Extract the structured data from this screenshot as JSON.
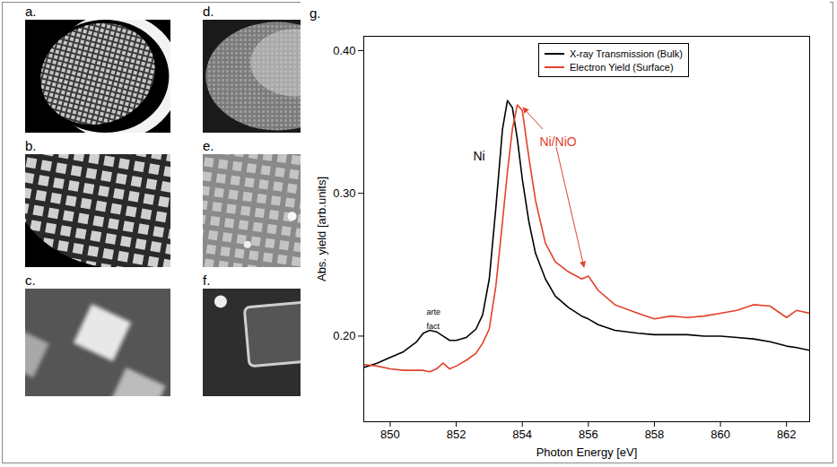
{
  "figure": {
    "panels": [
      "a.",
      "b.",
      "c.",
      "d.",
      "e.",
      "f."
    ],
    "chart_panel": "g."
  },
  "chart_data": {
    "type": "line",
    "x_label": "Photon Energy [eV]",
    "y_label": "Abs. yield [arb.units]",
    "x": [
      849.2,
      849.6,
      850,
      850.4,
      850.8,
      851.0,
      851.2,
      851.4,
      851.6,
      851.8,
      852.0,
      852.3,
      852.6,
      852.8,
      853.0,
      853.2,
      853.4,
      853.55,
      853.7,
      853.85,
      854.0,
      854.2,
      854.4,
      854.7,
      855.0,
      855.4,
      855.8,
      856.0,
      856.3,
      856.8,
      857.5,
      858,
      858.5,
      859,
      859.5,
      860,
      860.5,
      861,
      861.5,
      862,
      862.3,
      862.7
    ],
    "series": [
      {
        "name": "X-ray Transmission (Bulk)",
        "color": "#000000",
        "values": [
          0.178,
          0.181,
          0.185,
          0.189,
          0.196,
          0.202,
          0.204,
          0.203,
          0.2,
          0.197,
          0.197,
          0.199,
          0.205,
          0.215,
          0.24,
          0.29,
          0.345,
          0.365,
          0.36,
          0.338,
          0.31,
          0.28,
          0.258,
          0.24,
          0.228,
          0.22,
          0.214,
          0.212,
          0.208,
          0.204,
          0.202,
          0.201,
          0.201,
          0.201,
          0.2,
          0.2,
          0.199,
          0.198,
          0.196,
          0.193,
          0.192,
          0.19
        ]
      },
      {
        "name": "Electron Yield (Surface)",
        "color": "#e2412b",
        "values": [
          0.18,
          0.179,
          0.177,
          0.176,
          0.176,
          0.176,
          0.175,
          0.177,
          0.181,
          0.177,
          0.179,
          0.183,
          0.188,
          0.195,
          0.205,
          0.235,
          0.28,
          0.315,
          0.345,
          0.362,
          0.358,
          0.325,
          0.295,
          0.265,
          0.252,
          0.245,
          0.24,
          0.242,
          0.232,
          0.222,
          0.216,
          0.212,
          0.214,
          0.213,
          0.214,
          0.216,
          0.218,
          0.222,
          0.221,
          0.213,
          0.218,
          0.216
        ]
      }
    ],
    "xlim": [
      849.2,
      862.7
    ],
    "ylim": [
      0.14,
      0.41
    ],
    "xticks": [
      850,
      852,
      854,
      856,
      858,
      860,
      862
    ],
    "yticks": [
      0.2,
      0.3,
      0.4
    ],
    "grid": false,
    "legend": "top-right",
    "annotations": [
      {
        "text": "Ni",
        "color": "#000000"
      },
      {
        "text": "Ni/NiO",
        "color": "#e2412b"
      },
      {
        "text": "arte fact",
        "color": "#000000"
      }
    ]
  }
}
